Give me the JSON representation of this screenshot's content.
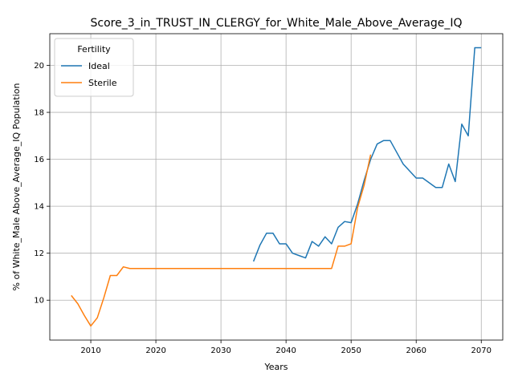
{
  "chart_data": {
    "type": "line",
    "title": "Score_3_in_TRUST_IN_CLERGY_for_White_Male_Above_Average_IQ",
    "xlabel": "Years",
    "ylabel": "% of White_Male Above_Average_IQ Population",
    "xlim": [
      2003.7,
      2073.3
    ],
    "ylim": [
      8.3,
      21.35
    ],
    "xticks": [
      2010,
      2020,
      2030,
      2040,
      2050,
      2060,
      2070
    ],
    "yticks": [
      10,
      12,
      14,
      16,
      18,
      20
    ],
    "grid": true,
    "legend": {
      "title": "Fertility",
      "position": "top-left"
    },
    "series": [
      {
        "name": "Ideal",
        "color": "#1f77b4",
        "x": [
          2035,
          2036,
          2037,
          2038,
          2039,
          2040,
          2041,
          2042,
          2043,
          2044,
          2045,
          2046,
          2047,
          2048,
          2049,
          2050,
          2051,
          2052,
          2053,
          2054,
          2055,
          2056,
          2057,
          2058,
          2059,
          2060,
          2061,
          2062,
          2063,
          2064,
          2065,
          2066,
          2067,
          2068,
          2069,
          2070
        ],
        "y": [
          11.65,
          12.35,
          12.85,
          12.85,
          12.4,
          12.4,
          12.0,
          11.9,
          11.8,
          12.5,
          12.3,
          12.7,
          12.4,
          13.1,
          13.35,
          13.3,
          14.1,
          15.1,
          16.0,
          16.65,
          16.8,
          16.8,
          16.3,
          15.8,
          15.5,
          15.2,
          15.2,
          15.0,
          14.8,
          14.8,
          15.8,
          15.05,
          17.5,
          17.0,
          20.75,
          20.75
        ]
      },
      {
        "name": "Sterile",
        "color": "#ff7f0e",
        "x": [
          2007,
          2008,
          2009,
          2010,
          2011,
          2012,
          2013,
          2014,
          2015,
          2016,
          2017,
          2018,
          2019,
          2020,
          2021,
          2022,
          2023,
          2024,
          2025,
          2026,
          2027,
          2028,
          2029,
          2030,
          2031,
          2032,
          2033,
          2034,
          2035,
          2036,
          2037,
          2038,
          2039,
          2040,
          2041,
          2042,
          2043,
          2044,
          2045,
          2046,
          2047,
          2048,
          2049,
          2050,
          2051,
          2052,
          2053
        ],
        "y": [
          10.2,
          9.85,
          9.35,
          8.9,
          9.25,
          10.1,
          11.05,
          11.05,
          11.42,
          11.35,
          11.35,
          11.35,
          11.35,
          11.35,
          11.35,
          11.35,
          11.35,
          11.35,
          11.35,
          11.35,
          11.35,
          11.35,
          11.35,
          11.35,
          11.35,
          11.35,
          11.35,
          11.35,
          11.35,
          11.35,
          11.35,
          11.35,
          11.35,
          11.35,
          11.35,
          11.35,
          11.35,
          11.35,
          11.35,
          11.35,
          11.35,
          12.3,
          12.3,
          12.4,
          13.95,
          14.9,
          16.2
        ]
      }
    ]
  }
}
